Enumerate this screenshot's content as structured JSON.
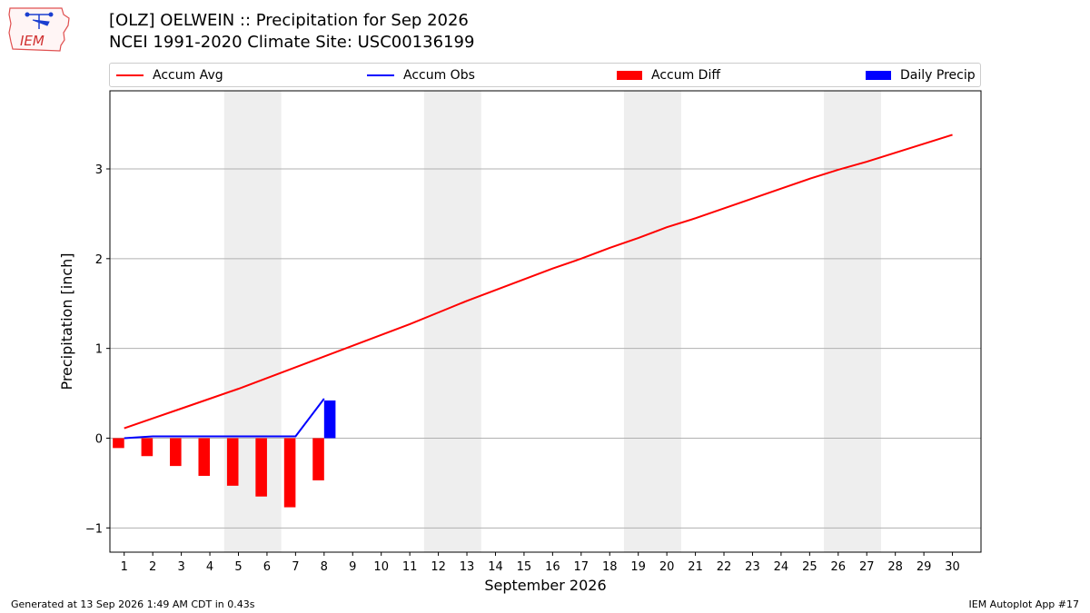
{
  "logo_text": "IEM",
  "title_line1": "[OLZ] OELWEIN :: Precipitation for Sep 2026",
  "title_line2": "NCEI 1991-2020 Climate Site: USC00136199",
  "legend": [
    {
      "label": "Accum Avg",
      "kind": "line",
      "color": "#ff0000"
    },
    {
      "label": "Accum Obs",
      "kind": "line",
      "color": "#0000ff"
    },
    {
      "label": "Accum Diff",
      "kind": "patch",
      "color": "#ff0000"
    },
    {
      "label": "Daily Precip",
      "kind": "patch",
      "color": "#0000ff"
    }
  ],
  "footer_left": "Generated at 13 Sep 2026 1:49 AM CDT in 0.43s",
  "footer_right": "IEM Autoplot App #17",
  "chart_data": {
    "type": "bar",
    "xlabel": "September 2026",
    "ylabel": "Precipitation [inch]",
    "xlim": [
      0.5,
      31
    ],
    "ylim": [
      -1.27,
      3.87
    ],
    "yticks": [
      -1,
      0,
      1,
      2,
      3
    ],
    "ytick_labels": [
      "−1",
      "0",
      "1",
      "2",
      "3"
    ],
    "x": [
      1,
      2,
      3,
      4,
      5,
      6,
      7,
      8,
      9,
      10,
      11,
      12,
      13,
      14,
      15,
      16,
      17,
      18,
      19,
      20,
      21,
      22,
      23,
      24,
      25,
      26,
      27,
      28,
      29,
      30
    ],
    "weekend_spans": [
      [
        4.5,
        6.5
      ],
      [
        11.5,
        13.5
      ],
      [
        18.5,
        20.5
      ],
      [
        25.5,
        27.5
      ]
    ],
    "grid": "y",
    "series": [
      {
        "name": "Accum Avg",
        "type": "line",
        "color": "#ff0000",
        "x": [
          1,
          2,
          3,
          4,
          5,
          6,
          7,
          8,
          9,
          10,
          11,
          12,
          13,
          14,
          15,
          16,
          17,
          18,
          19,
          20,
          21,
          22,
          23,
          24,
          25,
          26,
          27,
          28,
          29,
          30
        ],
        "values": [
          0.11,
          0.22,
          0.33,
          0.44,
          0.55,
          0.67,
          0.79,
          0.91,
          1.03,
          1.15,
          1.27,
          1.4,
          1.53,
          1.65,
          1.77,
          1.89,
          2.0,
          2.12,
          2.23,
          2.35,
          2.45,
          2.56,
          2.67,
          2.78,
          2.89,
          2.99,
          3.08,
          3.18,
          3.28,
          3.38
        ]
      },
      {
        "name": "Accum Obs",
        "type": "line",
        "color": "#0000ff",
        "x": [
          1,
          2,
          3,
          4,
          5,
          6,
          7,
          8
        ],
        "values": [
          0.0,
          0.02,
          0.02,
          0.02,
          0.02,
          0.02,
          0.02,
          0.44
        ]
      },
      {
        "name": "Accum Diff",
        "type": "bar",
        "color": "#ff0000",
        "x": [
          1,
          2,
          3,
          4,
          5,
          6,
          7,
          8
        ],
        "values": [
          -0.11,
          -0.2,
          -0.31,
          -0.42,
          -0.53,
          -0.65,
          -0.77,
          -0.47
        ]
      },
      {
        "name": "Daily Precip",
        "type": "bar",
        "color": "#0000ff",
        "x": [
          8
        ],
        "values": [
          0.42
        ]
      }
    ]
  }
}
